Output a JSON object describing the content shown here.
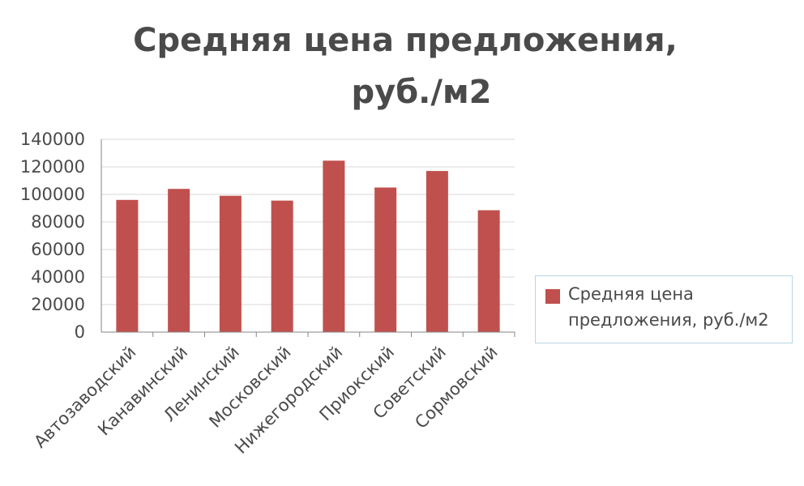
{
  "chart_data": {
    "type": "bar",
    "title_lines": [
      "Средняя цена предложения,",
      "руб./м2"
    ],
    "categories": [
      "Автозаводский",
      "Канавинский",
      "Ленинский",
      "Московский",
      "Нижегородский",
      "Приокский",
      "Советский",
      "Сормовский"
    ],
    "series": [
      {
        "name_lines": [
          "Средняя цена",
          "предложения, руб./м2"
        ],
        "values": [
          96000,
          104000,
          99000,
          95500,
          124500,
          105000,
          117000,
          88500
        ]
      }
    ],
    "y_ticks": [
      "0",
      "20000",
      "40000",
      "60000",
      "80000",
      "100000",
      "120000",
      "140000"
    ],
    "ylim": [
      0,
      140000
    ],
    "grid": true,
    "legend_position": "right",
    "colors": {
      "bar": "#c0504d",
      "grid": "#d9d9d9",
      "axis": "#868686",
      "text": "#4a4a4a"
    }
  }
}
